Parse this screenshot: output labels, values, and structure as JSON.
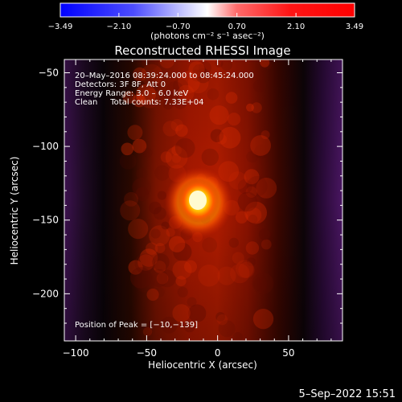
{
  "chart_data": {
    "type": "heatmap",
    "title": "Reconstructed RHESSI Image",
    "xlabel": "Heliocentric X (arcsec)",
    "ylabel": "Heliocentric Y (arcsec)",
    "xlim": [
      -108,
      88
    ],
    "ylim": [
      -232,
      -41
    ],
    "x_ticks": [
      -100,
      -50,
      0,
      50
    ],
    "y_ticks": [
      -50,
      -100,
      -150,
      -200
    ],
    "x_tick_labels": [
      "−100",
      "−50",
      "0",
      "50"
    ],
    "y_tick_labels": [
      "−50",
      "−100",
      "−150",
      "−200"
    ],
    "colorbar": {
      "min": -3.49,
      "max": 3.49,
      "tick_values": [
        -3.49,
        -2.1,
        -0.7,
        0.7,
        2.1,
        3.49
      ],
      "tick_labels": [
        "−3.49",
        "−2.10",
        "−0.70",
        "0.70",
        "2.10",
        "3.49"
      ],
      "unit_label": "(photons cm⁻² s⁻¹ asec⁻²)",
      "colormap": "blue-white-red"
    },
    "annotations": [
      "20–May–2016 08:39:24.000 to 08:45:24.000",
      "Detectors: 3F 8F, Att 0",
      "Energy Range: 3.0 – 6.0 keV",
      "Clean     Total counts: 7.33E+04"
    ],
    "peak_label": "Position of Peak = [−10,−139]",
    "peak": {
      "x": -10,
      "y": -139,
      "value": 3.49
    },
    "background_level": -0.7
  },
  "footer": {
    "date": "5–Sep–2022 15:51"
  },
  "colors": {
    "background": "#000000",
    "text": "#ffffff"
  }
}
